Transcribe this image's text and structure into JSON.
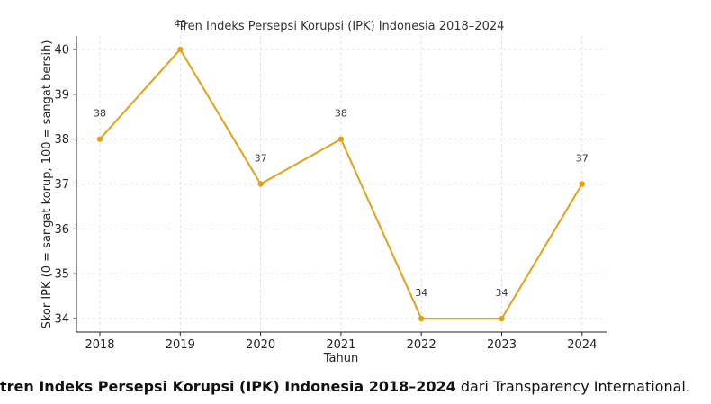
{
  "chart_data": {
    "type": "line",
    "title": "Tren Indeks Persepsi Korupsi (IPK) Indonesia 2018–2024",
    "xlabel": "Tahun",
    "ylabel": "Skor IPK (0 = sangat korup, 100 = sangat bersih)",
    "x": [
      "2018",
      "2019",
      "2020",
      "2021",
      "2022",
      "2023",
      "2024"
    ],
    "y_ticks": [
      "34",
      "35",
      "36",
      "37",
      "38",
      "39",
      "40"
    ],
    "series": [
      {
        "values": [
          38,
          40,
          37,
          38,
          34,
          34,
          37
        ],
        "color": "#e6a015"
      }
    ],
    "data_labels": [
      "38",
      "40",
      "37",
      "38",
      "34",
      "34",
      "37"
    ],
    "ylim": [
      33.7,
      40.3
    ],
    "grid": true,
    "legend": "none"
  },
  "caption": {
    "bold": "tren Indeks Persepsi Korupsi (IPK) Indonesia 2018–2024",
    "rest": " dari Transparency International."
  }
}
